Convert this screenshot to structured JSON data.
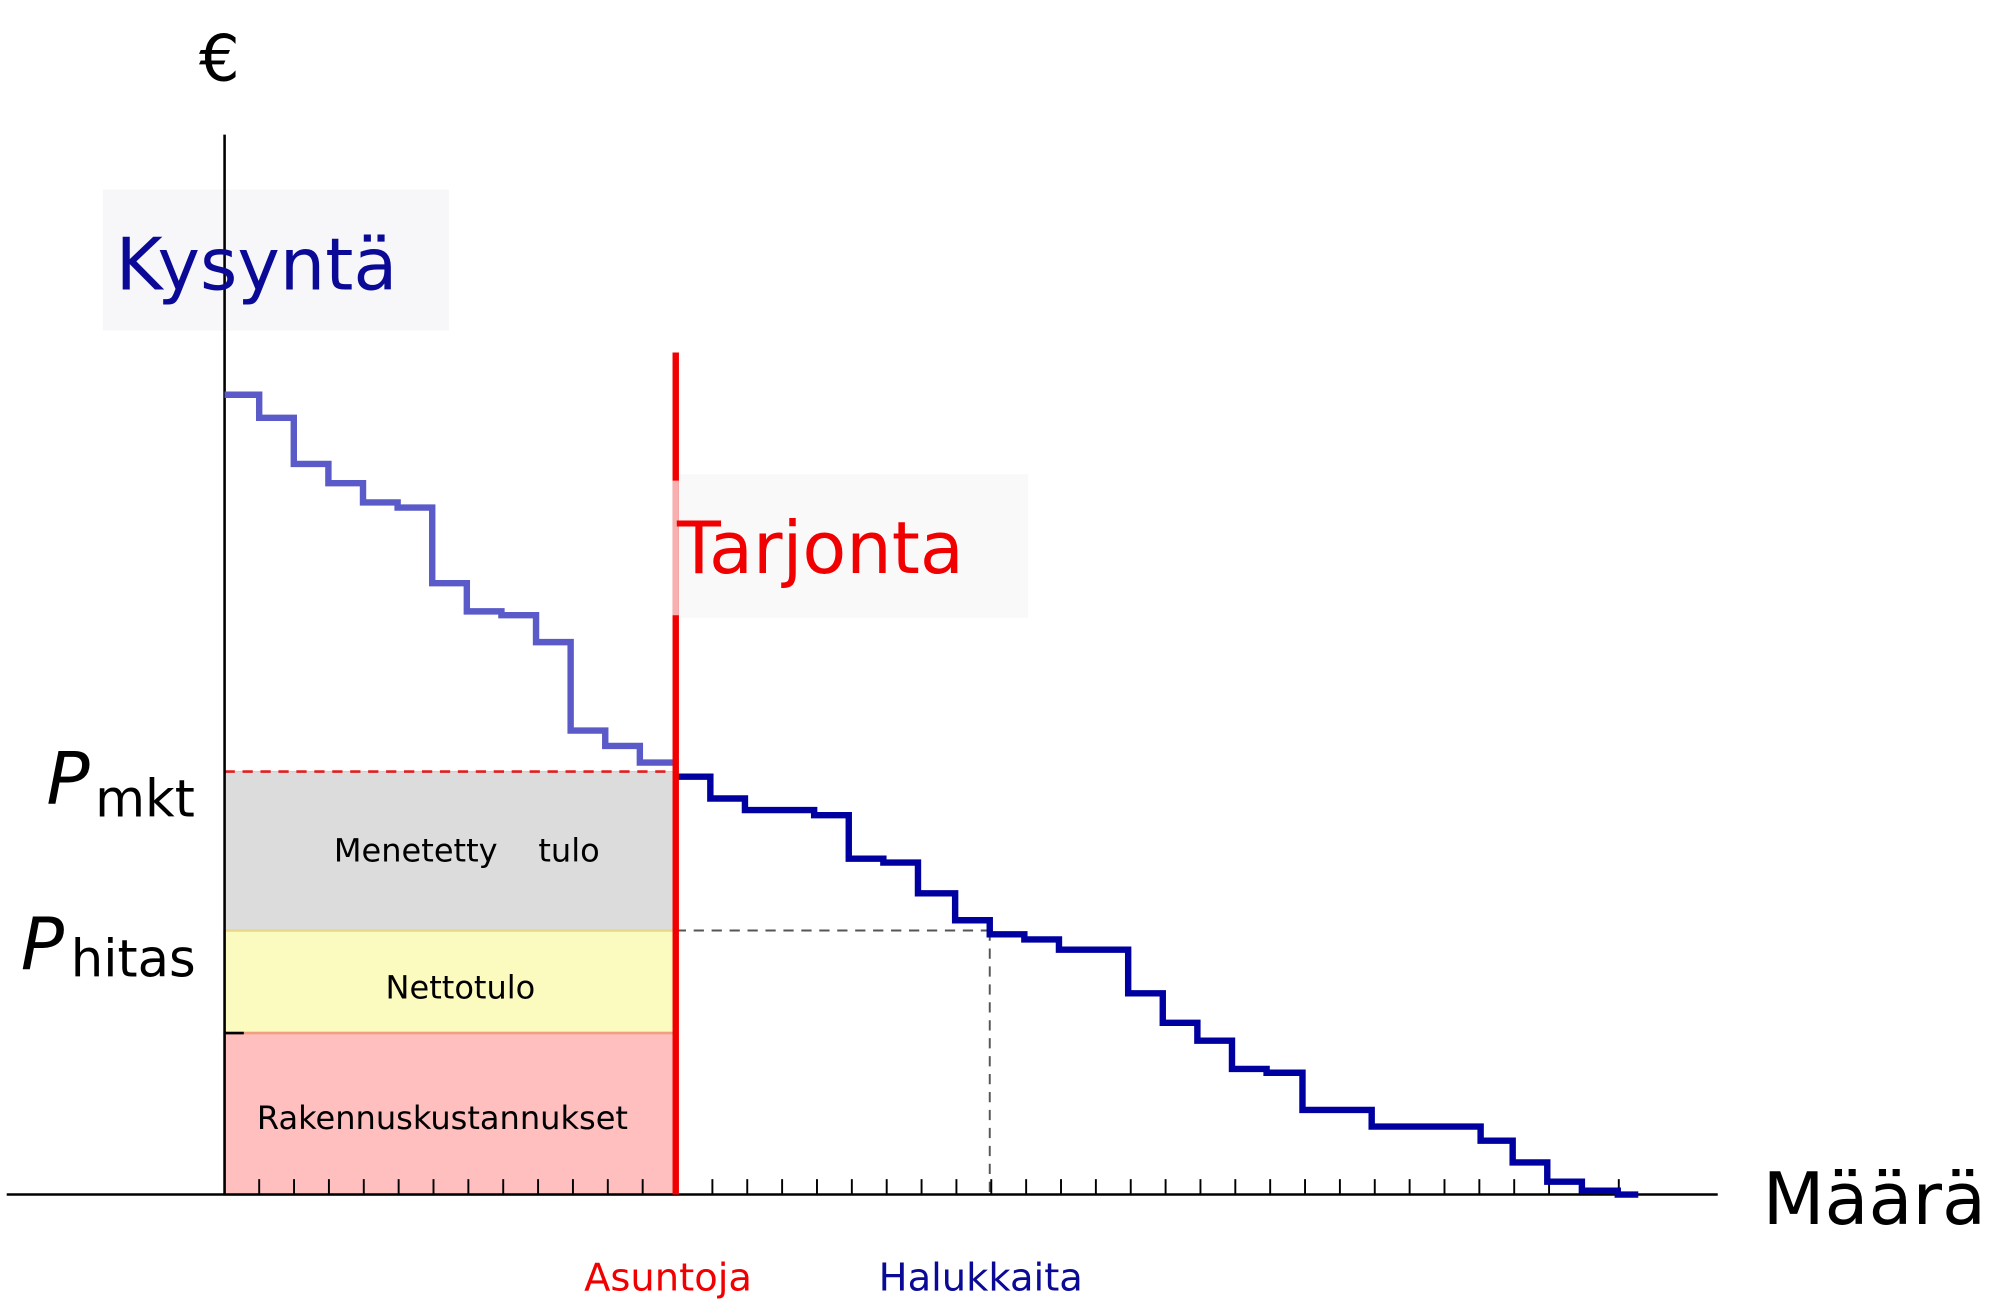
{
  "axes": {
    "y_label": "€",
    "x_label": "Määrä"
  },
  "curves": {
    "demand": "Kysyntä",
    "supply": "Tarjonta"
  },
  "prices": {
    "market": {
      "symbol": "P",
      "subscript": "mkt"
    },
    "hitas": {
      "symbol": "P",
      "subscript": "hitas"
    }
  },
  "areas": {
    "lost_income": "Menetetty    tulo",
    "net_income": "Nettotulo",
    "construction_costs": "Rakennuskustannukset"
  },
  "x_markers": {
    "apartments": "Asuntoja",
    "applicants": "Halukkaita"
  }
}
